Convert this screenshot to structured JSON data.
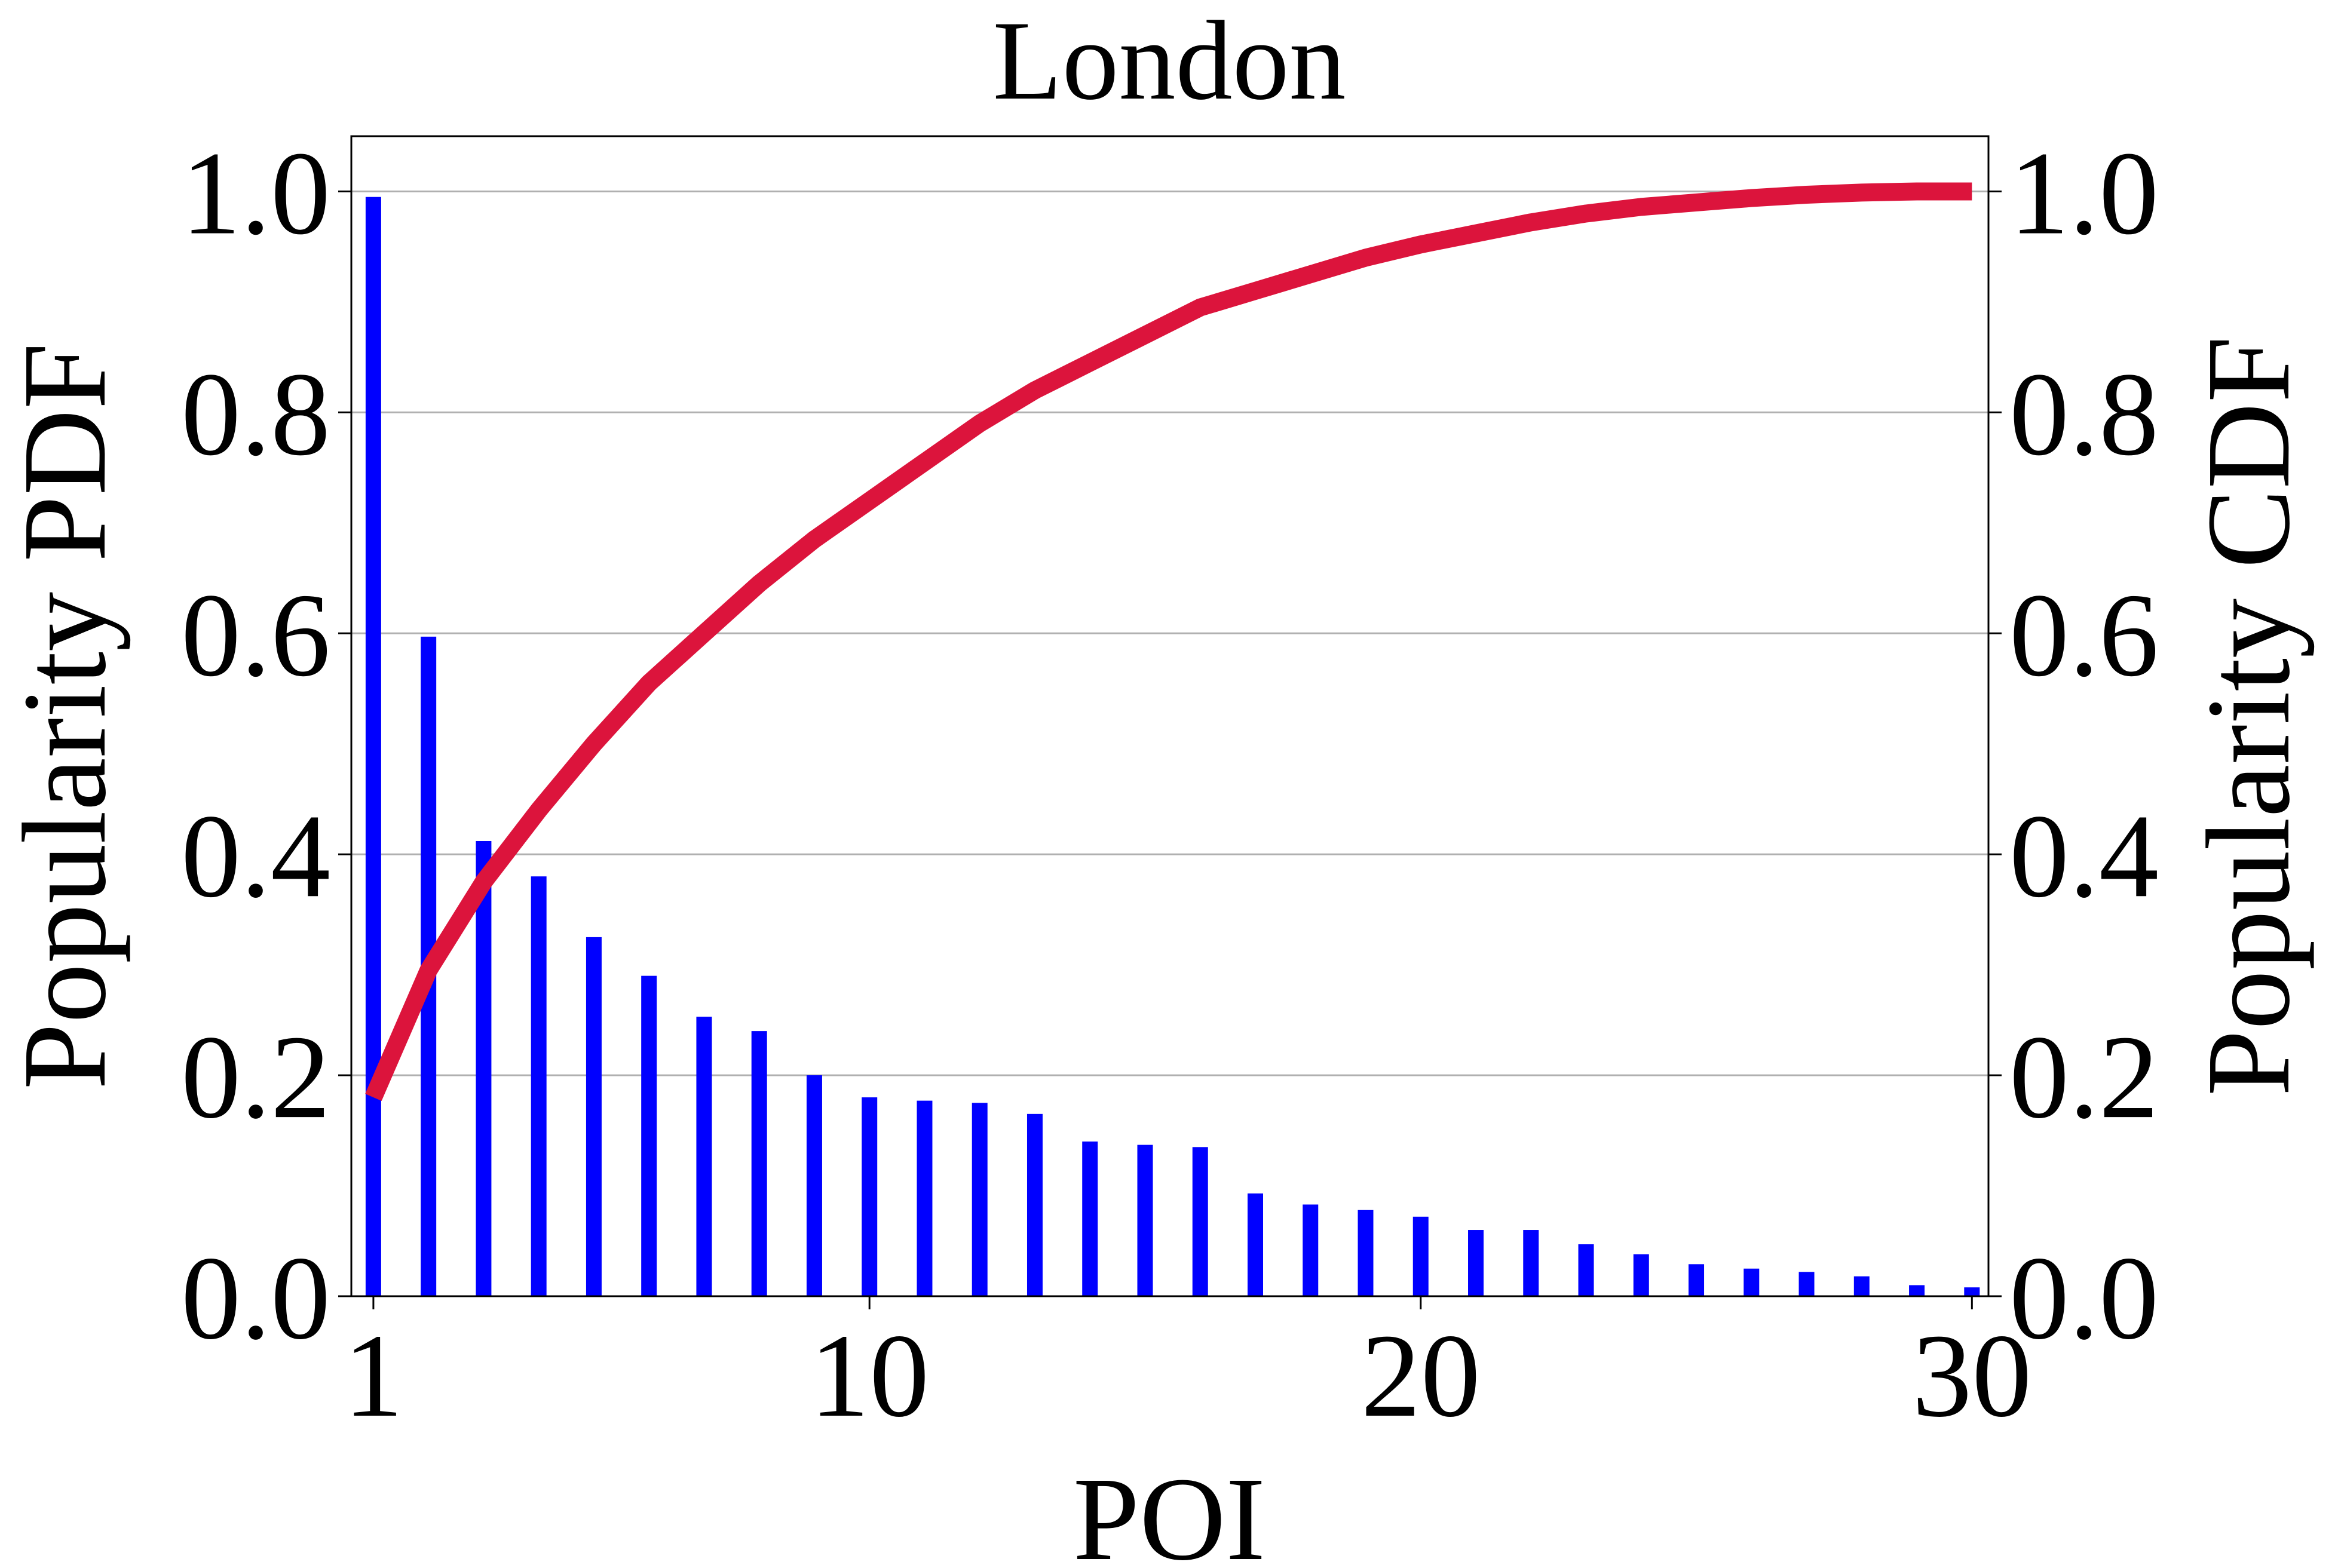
{
  "chart_data": {
    "type": "bar",
    "title": "London",
    "xlabel": "POI",
    "ylabel_left": "Popularity PDF",
    "ylabel_right": "Popularity CDF",
    "xlim": [
      0.6,
      30.3
    ],
    "ylim_left": [
      0,
      1.05
    ],
    "ylim_right": [
      0,
      1.05
    ],
    "x_ticks": [
      1,
      10,
      20,
      30
    ],
    "y_ticks": [
      0.0,
      0.2,
      0.4,
      0.6,
      0.8,
      1.0
    ],
    "y_tick_labels": [
      "0.0",
      "0.2",
      "0.4",
      "0.6",
      "0.8",
      "1.0"
    ],
    "grid": "horizontal",
    "x": [
      1,
      2,
      3,
      4,
      5,
      6,
      7,
      8,
      9,
      10,
      11,
      12,
      13,
      14,
      15,
      16,
      17,
      18,
      19,
      20,
      21,
      22,
      23,
      24,
      25,
      26,
      27,
      28,
      29,
      30
    ],
    "series": [
      {
        "type": "bar",
        "color": "#0000ff",
        "values": [
          0.995,
          0.597,
          0.412,
          0.38,
          0.325,
          0.29,
          0.253,
          0.24,
          0.2,
          0.18,
          0.177,
          0.175,
          0.165,
          0.14,
          0.137,
          0.135,
          0.093,
          0.083,
          0.078,
          0.072,
          0.06,
          0.06,
          0.047,
          0.038,
          0.029,
          0.025,
          0.022,
          0.018,
          0.01,
          0.008
        ]
      },
      {
        "type": "line",
        "color": "#dc143c",
        "values": [
          0.18,
          0.295,
          0.375,
          0.44,
          0.5,
          0.555,
          0.6,
          0.645,
          0.685,
          0.72,
          0.755,
          0.79,
          0.82,
          0.845,
          0.87,
          0.895,
          0.91,
          0.925,
          0.94,
          0.952,
          0.962,
          0.972,
          0.98,
          0.986,
          0.99,
          0.994,
          0.997,
          0.999,
          1.0,
          1.0
        ]
      }
    ]
  }
}
